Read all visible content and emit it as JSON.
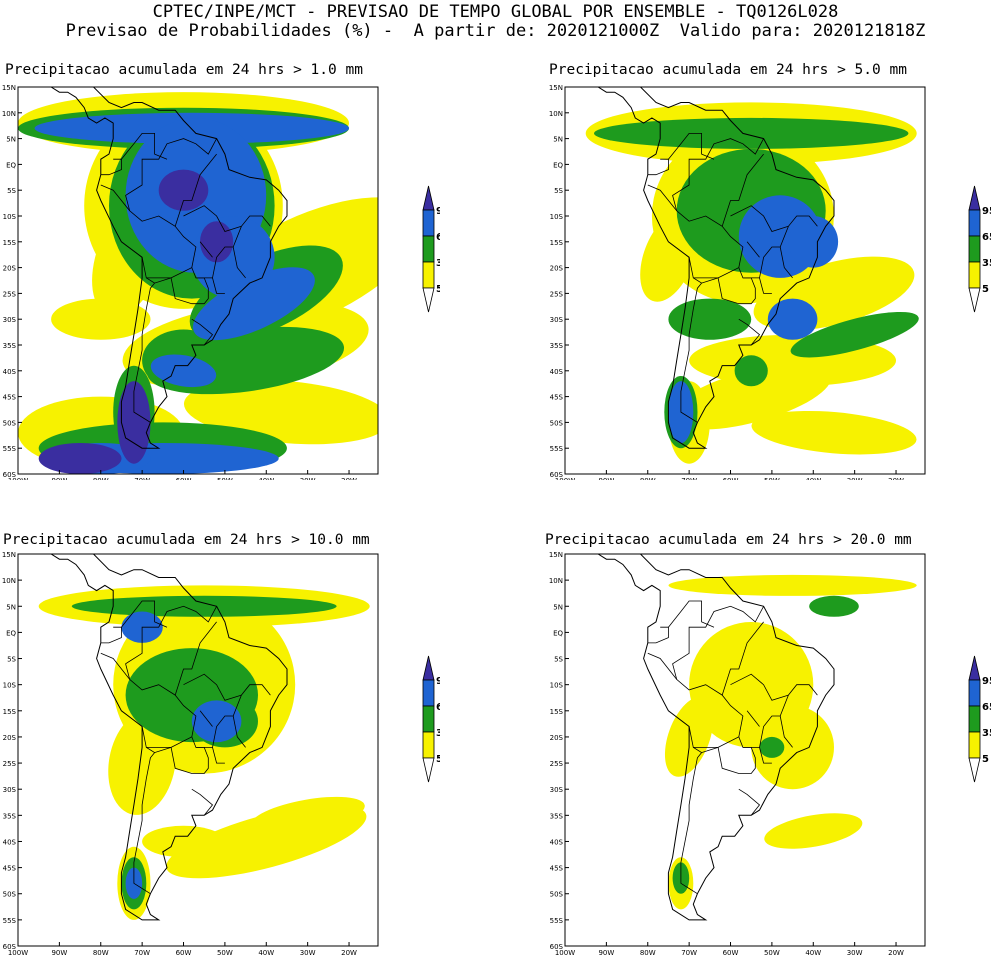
{
  "header": {
    "line1": "CPTEC/INPE/MCT - PREVISAO DE TEMPO GLOBAL POR ENSEMBLE - TQ0126L028",
    "line2": "Previsao de Probabilidades (%) -  A partir de: 2020121000Z  Valido para: 2020121818Z"
  },
  "axes": {
    "lat_labels": [
      "15N",
      "10N",
      "5N",
      "EQ",
      "5S",
      "10S",
      "15S",
      "20S",
      "25S",
      "30S",
      "35S",
      "40S",
      "45S",
      "50S",
      "55S",
      "60S"
    ],
    "lon_labels": [
      "100W",
      "90W",
      "80W",
      "70W",
      "60W",
      "50W",
      "40W",
      "30W",
      "20W"
    ]
  },
  "colorbar": {
    "labels": [
      "95",
      "65",
      "35",
      "5"
    ],
    "colors": {
      "above95": "#3a2ea0",
      "band65_95": "#1f64d2",
      "band35_65": "#1e9b1e",
      "band5_35": "#f7f200",
      "below5": "#ffffff"
    }
  },
  "panels": [
    {
      "title": "Precipitacao acumulada em 24 hrs > 1.0 mm"
    },
    {
      "title": "Precipitacao acumulada em 24 hrs > 5.0 mm"
    },
    {
      "title": "Precipitacao acumulada em 24 hrs > 10.0 mm"
    },
    {
      "title": "Precipitacao acumulada em 24 hrs > 20.0 mm"
    }
  ]
}
